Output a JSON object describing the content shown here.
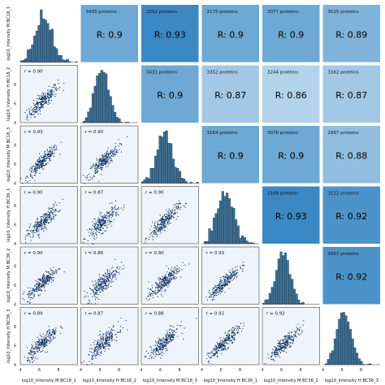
{
  "chart_data": {
    "type": "pairplot",
    "variables": [
      "log10_Intensity M BC18_1",
      "log10_Intensity H BC18_2",
      "log10_Intensity M BC18_3",
      "log10_Intensity H BC36_1",
      "log10_Intensity M BC36_2",
      "log10_Intensity H BC36_3"
    ],
    "upper_panels": [
      {
        "row": 0,
        "col": 1,
        "proteins_label": "3435 proteins",
        "r_label": "R: 0.9",
        "r": 0.9
      },
      {
        "row": 0,
        "col": 2,
        "proteins_label": "3252 proteins",
        "r_label": "R: 0.93",
        "r": 0.93
      },
      {
        "row": 0,
        "col": 3,
        "proteins_label": "3175 proteins",
        "r_label": "R: 0.9",
        "r": 0.9
      },
      {
        "row": 0,
        "col": 4,
        "proteins_label": "3077 proteins",
        "r_label": "R: 0.9",
        "r": 0.9
      },
      {
        "row": 0,
        "col": 5,
        "proteins_label": "3025 proteins",
        "r_label": "R: 0.89",
        "r": 0.89
      },
      {
        "row": 1,
        "col": 2,
        "proteins_label": "3431 proteins",
        "r_label": "R: 0.9",
        "r": 0.9
      },
      {
        "row": 1,
        "col": 3,
        "proteins_label": "3352 proteins",
        "r_label": "R: 0.87",
        "r": 0.87
      },
      {
        "row": 1,
        "col": 4,
        "proteins_label": "3244 proteins",
        "r_label": "R: 0.86",
        "r": 0.86
      },
      {
        "row": 1,
        "col": 5,
        "proteins_label": "3162 proteins",
        "r_label": "R: 0.87",
        "r": 0.87
      },
      {
        "row": 2,
        "col": 3,
        "proteins_label": "3164 proteins",
        "r_label": "R: 0.9",
        "r": 0.9
      },
      {
        "row": 2,
        "col": 4,
        "proteins_label": "3076 proteins",
        "r_label": "R: 0.9",
        "r": 0.9
      },
      {
        "row": 2,
        "col": 5,
        "proteins_label": "2997 proteins",
        "r_label": "R: 0.88",
        "r": 0.88
      },
      {
        "row": 3,
        "col": 4,
        "proteins_label": "3168 proteins",
        "r_label": "R: 0.93",
        "r": 0.93
      },
      {
        "row": 3,
        "col": 5,
        "proteins_label": "3112 proteins",
        "r_label": "R: 0.92",
        "r": 0.92
      },
      {
        "row": 4,
        "col": 5,
        "proteins_label": "3067 proteins",
        "r_label": "R: 0.92",
        "r": 0.92
      }
    ],
    "lower_panels": [
      {
        "row": 1,
        "col": 0,
        "r_label": "r = 0.90"
      },
      {
        "row": 2,
        "col": 0,
        "r_label": "r = 0.93"
      },
      {
        "row": 2,
        "col": 1,
        "r_label": "r = 0.90"
      },
      {
        "row": 3,
        "col": 0,
        "r_label": "r = 0.90"
      },
      {
        "row": 3,
        "col": 1,
        "r_label": "r = 0.87"
      },
      {
        "row": 3,
        "col": 2,
        "r_label": "r = 0.90"
      },
      {
        "row": 4,
        "col": 0,
        "r_label": "r = 0.90"
      },
      {
        "row": 4,
        "col": 1,
        "r_label": "r = 0.86"
      },
      {
        "row": 4,
        "col": 2,
        "r_label": "r = 0.90"
      },
      {
        "row": 4,
        "col": 3,
        "r_label": "r = 0.93"
      },
      {
        "row": 5,
        "col": 0,
        "r_label": "r = 0.89"
      },
      {
        "row": 5,
        "col": 1,
        "r_label": "r = 0.87"
      },
      {
        "row": 5,
        "col": 2,
        "r_label": "r = 0.88"
      },
      {
        "row": 5,
        "col": 3,
        "r_label": "r = 0.92"
      },
      {
        "row": 5,
        "col": 4,
        "r_label": "r = 0.92"
      }
    ],
    "diagonal": [
      {
        "index": 0,
        "type": "histogram",
        "shape": "right-skewed"
      },
      {
        "index": 1,
        "type": "histogram",
        "shape": "roughly symmetric"
      },
      {
        "index": 2,
        "type": "histogram",
        "shape": "right-skewed"
      },
      {
        "index": 3,
        "type": "histogram",
        "shape": "right-skewed"
      },
      {
        "index": 4,
        "type": "histogram",
        "shape": "roughly symmetric"
      },
      {
        "index": 5,
        "type": "histogram",
        "shape": "roughly symmetric"
      }
    ],
    "x_range": [
      4,
      10
    ],
    "x_ticks": [
      4,
      6,
      8
    ],
    "y_range": [
      4,
      10
    ],
    "y_ticks": [
      4,
      6,
      8
    ],
    "upper_color_scale": {
      "low_r": 0.86,
      "high_r": 0.93,
      "low_color": "#b3d3ea",
      "high_color": "#3b88c4"
    },
    "scatter_color": "#0b2a5e",
    "scatter_background": "#eef4fb",
    "hist_color": "#3f6f92",
    "grid": false
  }
}
